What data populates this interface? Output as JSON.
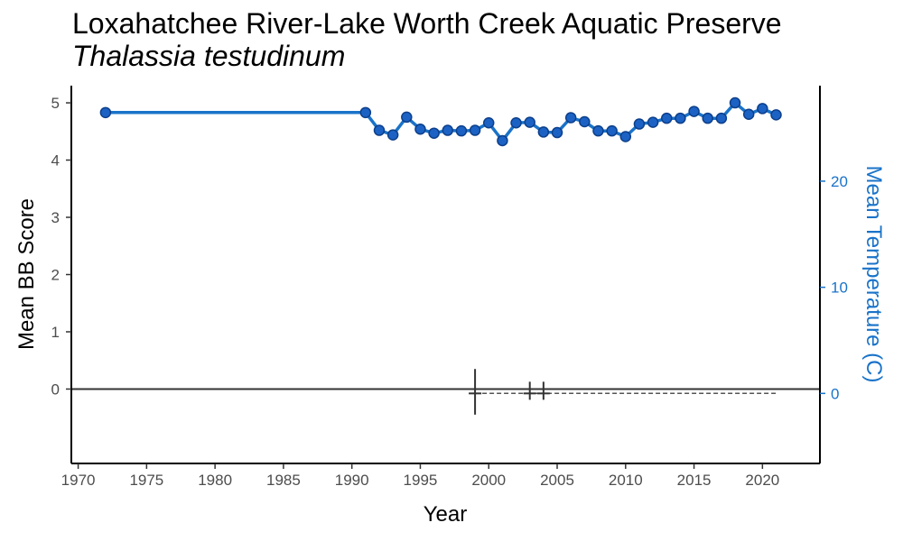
{
  "chart_data": {
    "type": "line",
    "title": "Loxahatchee River-Lake Worth Creek Aquatic Preserve",
    "subtitle": "Thalassia testudinum",
    "xlabel": "Year",
    "ylabel": "Mean BB Score",
    "y2label": "Mean Temperature (C)",
    "xlim": [
      1969.5,
      2024.2
    ],
    "ylim": [
      -1.3,
      5.3
    ],
    "y2lim": [
      -6.6,
      29
    ],
    "x_ticks": [
      1970,
      1975,
      1980,
      1985,
      1990,
      1995,
      2000,
      2005,
      2010,
      2015,
      2020
    ],
    "y_ticks": [
      0,
      1,
      2,
      3,
      4,
      5
    ],
    "y2_ticks": [
      0,
      10,
      20
    ],
    "grid": false,
    "colors": {
      "series": "#1a73c9",
      "marker_fill": "#1c62c4",
      "marker_edge": "#0d3f8a",
      "reference": "#333333",
      "temp_axis": "#1a73c9"
    },
    "series": [
      {
        "x": [
          1972,
          1991,
          1992,
          1993,
          1994,
          1995,
          1996,
          1997,
          1998,
          1999,
          2000,
          2001,
          2002,
          2003,
          2004,
          2005,
          2006,
          2007,
          2008,
          2009,
          2010,
          2011,
          2012,
          2013,
          2014,
          2015,
          2016,
          2017,
          2018,
          2019,
          2020,
          2021
        ],
        "values": [
          4.83,
          4.83,
          4.52,
          4.44,
          4.75,
          4.54,
          4.47,
          4.52,
          4.51,
          4.52,
          4.65,
          4.34,
          4.65,
          4.66,
          4.49,
          4.48,
          4.74,
          4.67,
          4.51,
          4.51,
          4.41,
          4.63,
          4.66,
          4.73,
          4.73,
          4.85,
          4.73,
          4.73,
          5.0,
          4.8,
          4.9,
          4.79
        ]
      }
    ],
    "temperature_series": {
      "x": [
        1999,
        2003,
        2004,
        2005,
        2008,
        2011,
        2014,
        2017,
        2021
      ],
      "values": [
        0,
        0,
        0,
        0,
        0,
        0,
        0,
        0,
        0
      ],
      "error_bars": [
        {
          "x": 1999,
          "low": -2.0,
          "high": 2.3
        },
        {
          "x": 2003,
          "low": -0.6,
          "high": 1.1
        },
        {
          "x": 2004,
          "low": -0.6,
          "high": 1.1
        }
      ]
    }
  }
}
